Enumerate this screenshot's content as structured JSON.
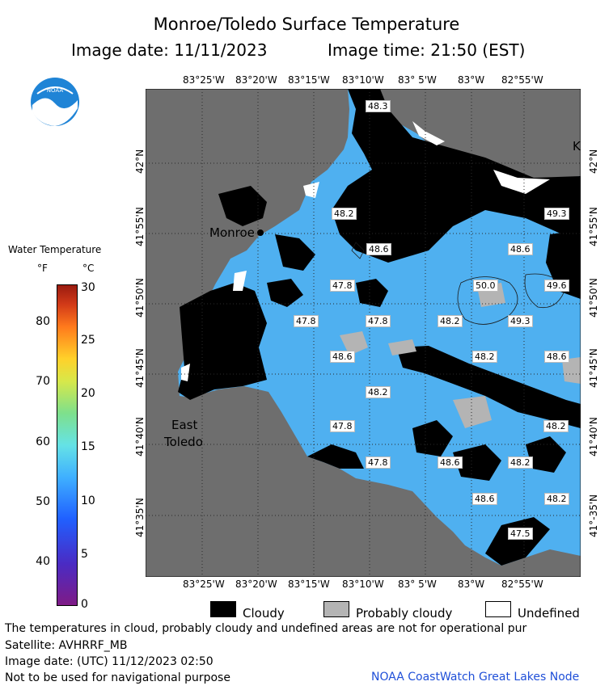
{
  "header": {
    "title": "Monroe/Toledo Surface Temperature",
    "image_date": "Image date: 11/11/2023",
    "image_time": "Image time: 21:50 (EST)"
  },
  "logo": {
    "text": "NOAA",
    "icon": "noaa-logo"
  },
  "map": {
    "lon_labels_top": [
      "83°25'W",
      "83°20'W",
      "83°15'W",
      "83°10'W",
      "83° 5'W",
      "83°W",
      "82°55'W"
    ],
    "lon_labels_bottom": [
      "83°25'W",
      "83°20'W",
      "83°15'W",
      "83°10'W",
      "83° 5'W",
      "83°W",
      "82°55'W"
    ],
    "lat_labels_left": [
      "42°N",
      "41°55'N",
      "41°50'N",
      "41°45'N",
      "41°40'N",
      "41°35'N"
    ],
    "lat_labels_right": [
      "42°N",
      "41°55'N",
      "41°50'N",
      "41°45'N",
      "41°40'N",
      "41°-35'N"
    ],
    "places": [
      "Monroe",
      "East",
      "Toledo",
      "K"
    ],
    "temperature_labels": [
      "48.3",
      "48.2",
      "49.3",
      "48.6",
      "48.6",
      "47.8",
      "50.0",
      "49.6",
      "47.8",
      "47.8",
      "48.2",
      "49.3",
      "48.6",
      "48.2",
      "48.6",
      "48.2",
      "47.8",
      "48.2",
      "47.8",
      "48.6",
      "48.2",
      "48.6",
      "48.2",
      "47.5"
    ]
  },
  "colorbar": {
    "title": "Water Temperature",
    "unit_f": "°F",
    "unit_c": "°C",
    "ticks_f": [
      "80",
      "70",
      "60",
      "50",
      "40"
    ],
    "ticks_c": [
      "30",
      "25",
      "20",
      "15",
      "10",
      "5",
      "0"
    ]
  },
  "legend": {
    "cloudy": "Cloudy",
    "probably_cloudy": "Probably cloudy",
    "undefined": "Undefined",
    "colors": {
      "cloudy": "#000000",
      "probably_cloudy": "#b4b4b4",
      "undefined": "#ffffff"
    }
  },
  "footer": {
    "note": "The temperatures in cloud, probably cloudy and undefined areas are not for operational pur",
    "satellite": "Satellite: AVHRRF_MB",
    "utc_date": "Image date: (UTC) 11/12/2023  02:50",
    "nav_warning": "Not to be used for navigational purpose",
    "credit": "NOAA CoastWatch Great Lakes Node"
  },
  "colors": {
    "land": "#6e6e6e",
    "water": "#4fb0f0",
    "cloud": "#000000",
    "probably_cloudy": "#b4b4b4"
  }
}
